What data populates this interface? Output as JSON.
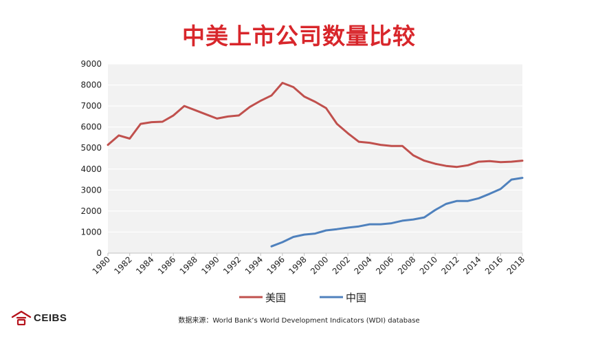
{
  "title": "中美上市公司数量比较",
  "source_note": "数据来源：World Bank’s World Development Indicators (WDI) database",
  "logo": {
    "text": "CEIBS",
    "icon": "ceibs-logo-icon",
    "color": "#b5121b"
  },
  "colors": {
    "title": "#d8262b",
    "us": "#c0504d",
    "china": "#4f81bd",
    "plot_bg": "#f2f2f2",
    "grid": "#ffffff"
  },
  "chart_data": {
    "type": "line",
    "title": "中美上市公司数量比较",
    "xlabel": "",
    "ylabel": "",
    "ylim": [
      0,
      9000
    ],
    "yticks": [
      "0",
      "1000",
      "2000",
      "3000",
      "4000",
      "5000",
      "6000",
      "7000",
      "8000",
      "9000"
    ],
    "xticks": [
      "1980",
      "1982",
      "1984",
      "1986",
      "1988",
      "1990",
      "1992",
      "1994",
      "1996",
      "1998",
      "2000",
      "2002",
      "2004",
      "2006",
      "2008",
      "2010",
      "2012",
      "2014",
      "2016",
      "2018"
    ],
    "xlim": [
      1980,
      2018
    ],
    "grid": true,
    "legend": "bottom",
    "series": [
      {
        "name": "美国",
        "color": "#c0504d",
        "x": [
          1980,
          1981,
          1982,
          1983,
          1984,
          1985,
          1986,
          1987,
          1988,
          1989,
          1990,
          1991,
          1992,
          1993,
          1994,
          1995,
          1996,
          1997,
          1998,
          1999,
          2000,
          2001,
          2002,
          2003,
          2004,
          2005,
          2006,
          2007,
          2008,
          2009,
          2010,
          2011,
          2012,
          2013,
          2014,
          2015,
          2016,
          2017,
          2018
        ],
        "values": [
          5150,
          5600,
          5450,
          6150,
          6230,
          6250,
          6550,
          7000,
          6800,
          6600,
          6400,
          6500,
          6550,
          6950,
          7250,
          7500,
          8100,
          7900,
          7450,
          7200,
          6900,
          6150,
          5700,
          5300,
          5250,
          5150,
          5100,
          5100,
          4650,
          4400,
          4250,
          4150,
          4100,
          4180,
          4350,
          4380,
          4330,
          4350,
          4400
        ]
      },
      {
        "name": "中国",
        "color": "#4f81bd",
        "x": [
          1995,
          1996,
          1997,
          1998,
          1999,
          2000,
          2001,
          2002,
          2003,
          2004,
          2005,
          2006,
          2007,
          2008,
          2009,
          2010,
          2011,
          2012,
          2013,
          2014,
          2015,
          2016,
          2017,
          2018
        ],
        "values": [
          320,
          520,
          770,
          880,
          930,
          1080,
          1140,
          1210,
          1270,
          1370,
          1370,
          1420,
          1540,
          1600,
          1700,
          2050,
          2340,
          2480,
          2480,
          2610,
          2820,
          3050,
          3500,
          3580
        ]
      }
    ]
  }
}
